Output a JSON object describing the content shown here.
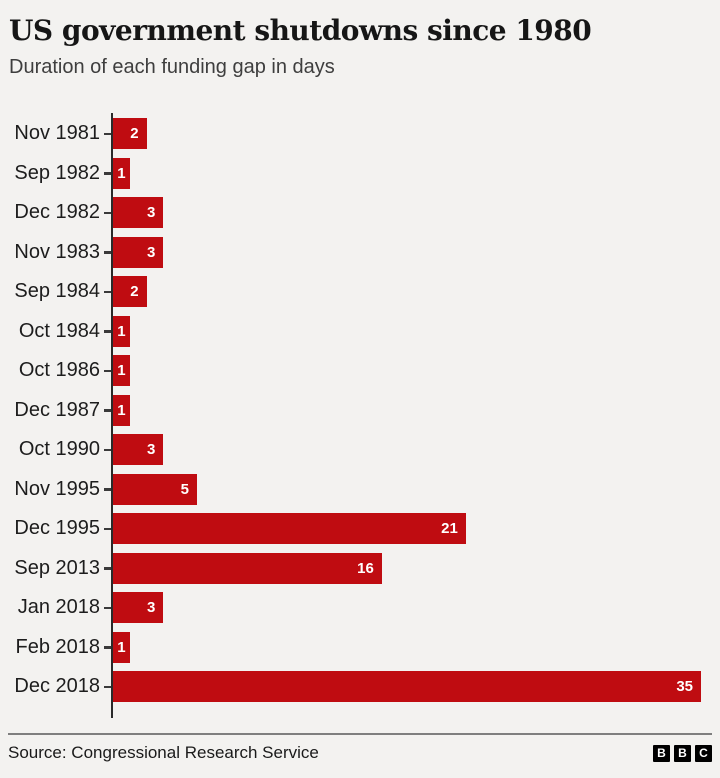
{
  "header": {
    "title": "US government shutdowns since 1980",
    "subtitle": "Duration of each funding gap in days"
  },
  "chart_data": {
    "type": "bar",
    "orientation": "horizontal",
    "title": "US government shutdowns since 1980",
    "subtitle": "Duration of each funding gap in days",
    "categories": [
      "Nov 1981",
      "Sep 1982",
      "Dec 1982",
      "Nov 1983",
      "Sep 1984",
      "Oct 1984",
      "Oct 1986",
      "Dec 1987",
      "Oct 1990",
      "Nov 1995",
      "Dec 1995",
      "Sep 2013",
      "Jan 2018",
      "Feb 2018",
      "Dec 2018"
    ],
    "values": [
      2,
      1,
      3,
      3,
      2,
      1,
      1,
      1,
      3,
      5,
      21,
      16,
      3,
      1,
      35
    ],
    "xlabel": "",
    "ylabel": "",
    "xlim": [
      0,
      35
    ],
    "grid": false,
    "legend": false,
    "value_labels": "inside-end",
    "bar_color": "#bf0c11"
  },
  "footer": {
    "source": "Source: Congressional Research Service",
    "logo_letters": [
      "B",
      "B",
      "C"
    ]
  },
  "colors": {
    "background": "#f3f2f0",
    "bar": "#bf0c11",
    "title": "#161616",
    "subtitle": "#3e3e3e",
    "axis": "#2a2a2a",
    "divider": "#7f7f7f",
    "value_label": "#ffffff"
  }
}
